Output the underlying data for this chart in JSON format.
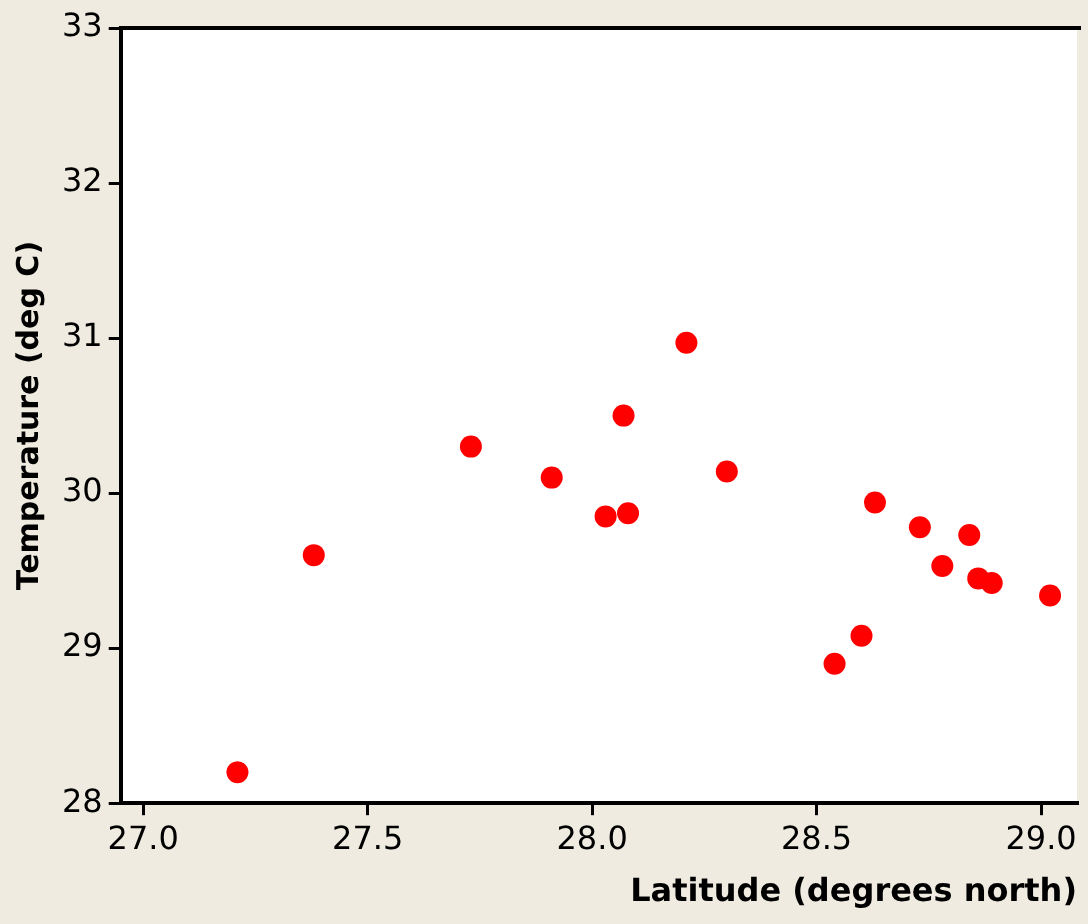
{
  "chart_data": {
    "type": "scatter",
    "xlabel": "Latitude (degrees north)",
    "ylabel": "Temperature (deg C)",
    "xlim": [
      26.95,
      29.08
    ],
    "ylim": [
      28,
      33
    ],
    "xticks": [
      {
        "value": 27,
        "label": "27.0"
      },
      {
        "value": 27.5,
        "label": "27.5"
      },
      {
        "value": 28,
        "label": "28.0"
      },
      {
        "value": 28.5,
        "label": "28.5"
      },
      {
        "value": 29,
        "label": "29.0"
      }
    ],
    "yticks": [
      28,
      29,
      30,
      31,
      32,
      33
    ],
    "grid": false,
    "legend": false,
    "marker": "circle",
    "series": [
      {
        "color": "#ff0000",
        "x": [
          27.21,
          27.38,
          27.73,
          27.91,
          28.03,
          28.08,
          28.07,
          28.21,
          28.3,
          28.54,
          28.6,
          28.63,
          28.73,
          28.78,
          28.84,
          28.86,
          28.89,
          29.02
        ],
        "values": [
          28.2,
          29.6,
          30.3,
          30.1,
          29.85,
          29.87,
          30.5,
          30.97,
          30.14,
          28.9,
          29.08,
          29.94,
          29.78,
          29.53,
          29.73,
          29.45,
          29.42,
          29.34
        ]
      }
    ]
  }
}
